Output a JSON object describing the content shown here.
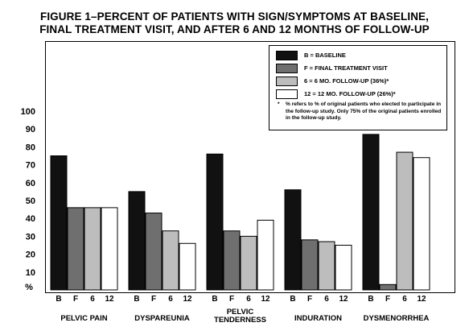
{
  "title_line1": "FIGURE 1–PERCENT OF PATIENTS WITH SIGN/SYMPTOMS AT BASELINE,",
  "title_line2": "FINAL TREATMENT VISIT, AND AFTER 6 AND 12 MONTHS OF FOLLOW-UP",
  "legend": {
    "items": [
      {
        "label": "B = BASELINE",
        "color": "#111111"
      },
      {
        "label": "F = FINAL TREATMENT VISIT",
        "color": "#6f6f6f"
      },
      {
        "label": "6 = 6 MO. FOLLOW-UP (36%)*",
        "color": "#bdbdbd"
      },
      {
        "label": "12 = 12 MO. FOLLOW-UP (26%)*",
        "color": "#ffffff"
      }
    ],
    "note_star": "*",
    "note": "% refers to % of original patients who elected to participate in the follow-up study. Only 75% of the original patients enrolled in the follow-up study."
  },
  "chart_data": {
    "type": "bar",
    "title": "FIGURE 1–PERCENT OF PATIENTS WITH SIGN/SYMPTOMS AT BASELINE, FINAL TREATMENT VISIT, AND AFTER 6 AND 12 MONTHS OF FOLLOW-UP",
    "ylabel": "%",
    "ylim": [
      0,
      100
    ],
    "yticks": [
      10,
      20,
      30,
      40,
      50,
      60,
      70,
      80,
      90,
      100
    ],
    "bar_labels": [
      "B",
      "F",
      "6",
      "12"
    ],
    "categories": [
      {
        "label": [
          "PELVIC PAIN"
        ]
      },
      {
        "label": [
          "DYSPAREUNIA"
        ]
      },
      {
        "label": [
          "PELVIC",
          "TENDERNESS"
        ]
      },
      {
        "label": [
          "INDURATION"
        ]
      },
      {
        "label": [
          "DYSMENORRHEA"
        ]
      }
    ],
    "series": [
      {
        "name": "B = BASELINE",
        "color": "#111111",
        "values": [
          75,
          55,
          76,
          56,
          87
        ]
      },
      {
        "name": "F = FINAL TREATMENT VISIT",
        "color": "#6f6f6f",
        "values": [
          46,
          43,
          33,
          28,
          3
        ]
      },
      {
        "name": "6 = 6 MO. FOLLOW-UP (36%)*",
        "color": "#bdbdbd",
        "values": [
          46,
          33,
          30,
          27,
          77
        ]
      },
      {
        "name": "12 = 12 MO. FOLLOW-UP (26%)*",
        "color": "#ffffff",
        "values": [
          46,
          26,
          39,
          25,
          74
        ]
      }
    ],
    "grid": false,
    "legend_position": "top-right"
  }
}
